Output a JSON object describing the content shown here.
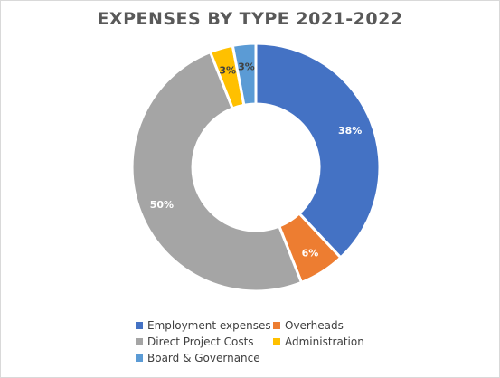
{
  "chart_data": {
    "type": "pie",
    "title": "EXPENSES BY TYPE 2021-2022",
    "donut": true,
    "legend_position": "bottom",
    "slices": [
      {
        "name": "Employment expenses",
        "value": 38,
        "label": "38%",
        "color": "#4472c4",
        "label_color": "#ffffff"
      },
      {
        "name": "Overheads",
        "value": 6,
        "label": "6%",
        "color": "#ed7d31",
        "label_color": "#ffffff"
      },
      {
        "name": "Direct Project Costs",
        "value": 50,
        "label": "50%",
        "color": "#a5a5a5",
        "label_color": "#ffffff"
      },
      {
        "name": "Administration",
        "value": 3,
        "label": "3%",
        "color": "#ffc000",
        "label_color": "#404040"
      },
      {
        "name": "Board & Governance",
        "value": 3,
        "label": "3%",
        "color": "#5b9bd5",
        "label_color": "#404040"
      }
    ]
  }
}
